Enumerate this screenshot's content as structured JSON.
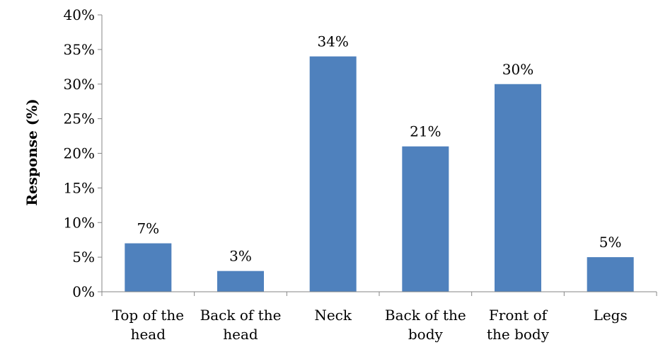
{
  "chart_data": {
    "type": "bar",
    "categories": [
      [
        "Top of the",
        "head"
      ],
      [
        "Back of the",
        "head"
      ],
      [
        "Neck"
      ],
      [
        "Back of the",
        "body"
      ],
      [
        "Front of",
        "the body"
      ],
      [
        "Legs"
      ]
    ],
    "values": [
      7,
      3,
      34,
      21,
      30,
      5
    ],
    "data_labels": [
      "7%",
      "3%",
      "34%",
      "21%",
      "30%",
      "5%"
    ],
    "ylabel": "Response (%)",
    "xlabel": "",
    "title": "",
    "ylim": [
      0,
      40
    ],
    "ytick_step": 5,
    "ytick_labels": [
      "0%",
      "5%",
      "10%",
      "15%",
      "20%",
      "25%",
      "30%",
      "35%",
      "40%"
    ],
    "grid": false,
    "legend": "none",
    "colors": {
      "bar": "#4f81bd",
      "axis": "#868686"
    }
  }
}
